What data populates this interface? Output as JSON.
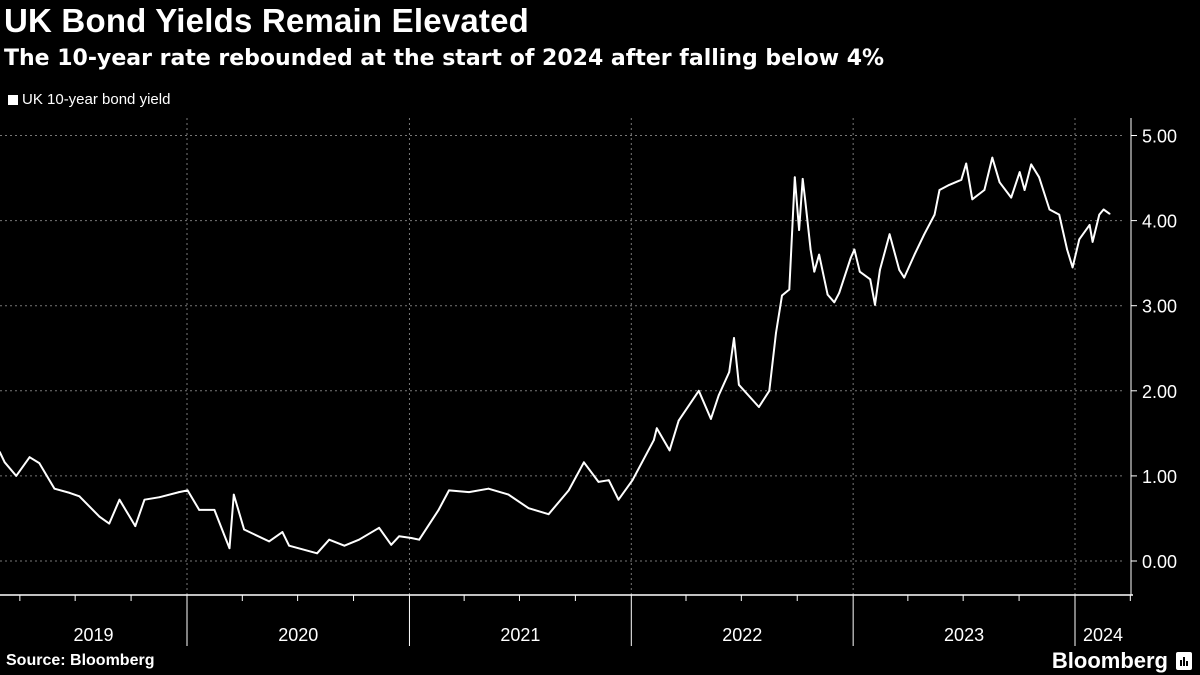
{
  "chart_data": {
    "type": "line",
    "title": "UK Bond Yields Remain Elevated",
    "subtitle": "The 10-year rate rebounded at the start of 2024 after falling below 4%",
    "xlabel": "",
    "ylabel": "",
    "x_tick_labels": [
      "2019",
      "2020",
      "2021",
      "2022",
      "2023",
      "2024"
    ],
    "y_tick_labels": [
      "0.00",
      "1.00",
      "2.00",
      "3.00",
      "4.00",
      "5.00"
    ],
    "ylim": [
      -0.4,
      5.2
    ],
    "xlim": [
      "2019-02-27",
      "2024-02-27"
    ],
    "grid": true,
    "y_axis_side": "right",
    "legend_position": "top-left",
    "series": [
      {
        "name": "UK 10-year bond yield",
        "color": "#ffffff",
        "points": [
          [
            "2019-02-27",
            1.28
          ],
          [
            "2019-03-07",
            1.16
          ],
          [
            "2019-03-26",
            1.0
          ],
          [
            "2019-04-17",
            1.22
          ],
          [
            "2019-05-03",
            1.15
          ],
          [
            "2019-05-28",
            0.85
          ],
          [
            "2019-06-22",
            0.8
          ],
          [
            "2019-07-08",
            0.76
          ],
          [
            "2019-08-10",
            0.52
          ],
          [
            "2019-08-26",
            0.44
          ],
          [
            "2019-09-12",
            0.72
          ],
          [
            "2019-10-08",
            0.41
          ],
          [
            "2019-10-23",
            0.72
          ],
          [
            "2019-11-17",
            0.75
          ],
          [
            "2019-12-19",
            0.81
          ],
          [
            "2020-01-02",
            0.83
          ],
          [
            "2020-01-21",
            0.6
          ],
          [
            "2020-02-15",
            0.6
          ],
          [
            "2020-03-02",
            0.31
          ],
          [
            "2020-03-11",
            0.15
          ],
          [
            "2020-03-18",
            0.78
          ],
          [
            "2020-04-04",
            0.37
          ],
          [
            "2020-05-15",
            0.23
          ],
          [
            "2020-06-06",
            0.34
          ],
          [
            "2020-06-17",
            0.18
          ],
          [
            "2020-08-02",
            0.09
          ],
          [
            "2020-08-22",
            0.25
          ],
          [
            "2020-09-16",
            0.18
          ],
          [
            "2020-10-10",
            0.25
          ],
          [
            "2020-11-12",
            0.39
          ],
          [
            "2020-12-02",
            0.19
          ],
          [
            "2020-12-15",
            0.29
          ],
          [
            "2021-01-04",
            0.27
          ],
          [
            "2021-01-17",
            0.25
          ],
          [
            "2021-02-18",
            0.6
          ],
          [
            "2021-03-07",
            0.83
          ],
          [
            "2021-04-09",
            0.81
          ],
          [
            "2021-05-11",
            0.85
          ],
          [
            "2021-06-13",
            0.78
          ],
          [
            "2021-07-16",
            0.62
          ],
          [
            "2021-08-18",
            0.55
          ],
          [
            "2021-09-20",
            0.83
          ],
          [
            "2021-10-15",
            1.16
          ],
          [
            "2021-11-08",
            0.93
          ],
          [
            "2021-11-25",
            0.95
          ],
          [
            "2021-12-11",
            0.72
          ],
          [
            "2022-01-03",
            0.95
          ],
          [
            "2022-02-07",
            1.42
          ],
          [
            "2022-02-12",
            1.56
          ],
          [
            "2022-03-05",
            1.3
          ],
          [
            "2022-03-20",
            1.65
          ],
          [
            "2022-04-22",
            2.0
          ],
          [
            "2022-05-12",
            1.67
          ],
          [
            "2022-05-25",
            1.95
          ],
          [
            "2022-06-11",
            2.22
          ],
          [
            "2022-06-19",
            2.62
          ],
          [
            "2022-06-27",
            2.07
          ],
          [
            "2022-07-30",
            1.81
          ],
          [
            "2022-08-16",
            2.0
          ],
          [
            "2022-08-27",
            2.68
          ],
          [
            "2022-09-06",
            3.12
          ],
          [
            "2022-09-18",
            3.19
          ],
          [
            "2022-09-27",
            4.51
          ],
          [
            "2022-10-04",
            3.89
          ],
          [
            "2022-10-10",
            4.49
          ],
          [
            "2022-10-14",
            4.25
          ],
          [
            "2022-10-23",
            3.66
          ],
          [
            "2022-10-29",
            3.4
          ],
          [
            "2022-11-06",
            3.6
          ],
          [
            "2022-11-20",
            3.13
          ],
          [
            "2022-12-01",
            3.04
          ],
          [
            "2022-12-09",
            3.15
          ],
          [
            "2022-12-28",
            3.56
          ],
          [
            "2023-01-03",
            3.66
          ],
          [
            "2023-01-12",
            3.4
          ],
          [
            "2023-01-29",
            3.31
          ],
          [
            "2023-02-06",
            3.01
          ],
          [
            "2023-02-14",
            3.42
          ],
          [
            "2023-03-02",
            3.84
          ],
          [
            "2023-03-18",
            3.42
          ],
          [
            "2023-03-26",
            3.33
          ],
          [
            "2023-04-12",
            3.6
          ],
          [
            "2023-04-28",
            3.84
          ],
          [
            "2023-05-15",
            4.07
          ],
          [
            "2023-05-23",
            4.36
          ],
          [
            "2023-06-08",
            4.42
          ],
          [
            "2023-06-28",
            4.48
          ],
          [
            "2023-07-06",
            4.67
          ],
          [
            "2023-07-16",
            4.25
          ],
          [
            "2023-08-05",
            4.36
          ],
          [
            "2023-08-18",
            4.74
          ],
          [
            "2023-08-30",
            4.45
          ],
          [
            "2023-09-18",
            4.27
          ],
          [
            "2023-10-02",
            4.57
          ],
          [
            "2023-10-10",
            4.36
          ],
          [
            "2023-10-21",
            4.66
          ],
          [
            "2023-11-03",
            4.51
          ],
          [
            "2023-11-20",
            4.13
          ],
          [
            "2023-12-06",
            4.07
          ],
          [
            "2023-12-19",
            3.66
          ],
          [
            "2023-12-28",
            3.45
          ],
          [
            "2024-01-08",
            3.78
          ],
          [
            "2024-01-25",
            3.95
          ],
          [
            "2024-01-30",
            3.75
          ],
          [
            "2024-02-10",
            4.07
          ],
          [
            "2024-02-17",
            4.13
          ],
          [
            "2024-02-27",
            4.08
          ]
        ]
      }
    ],
    "source": "Source: Bloomberg"
  },
  "branding": {
    "logo": "Bloomberg"
  }
}
